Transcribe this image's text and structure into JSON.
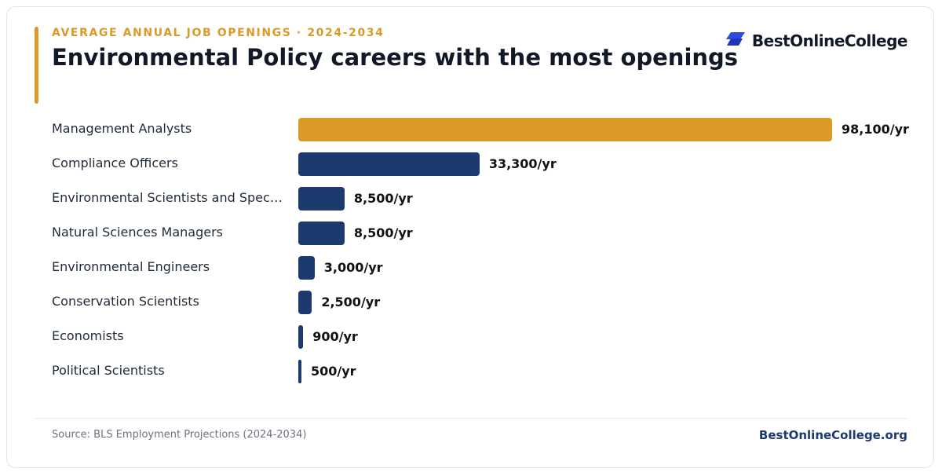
{
  "header": {
    "eyebrow": "AVERAGE ANNUAL JOB OPENINGS · 2024-2034",
    "title": "Environmental Policy careers with the most openings"
  },
  "brand": {
    "name": "BestOnlineCollege",
    "icon": "stacked-parallelogram-logo-icon"
  },
  "footer": {
    "source": "Source: BLS Employment Projections (2024-2034)",
    "site": "BestOnlineCollege.org"
  },
  "colors": {
    "accent": "#DB9A28",
    "primary_bar": "#1D3A6E",
    "highlight_bar": "#DB9A28",
    "site_link": "#1D3A6E",
    "brand_icon": "#2B4BE0"
  },
  "chart_data": {
    "type": "bar",
    "orientation": "horizontal",
    "title": "Environmental Policy careers with the most openings",
    "subtitle": "AVERAGE ANNUAL JOB OPENINGS · 2024-2034",
    "value_suffix": "/yr",
    "categories": [
      "Management Analysts",
      "Compliance Officers",
      "Environmental Scientists and Speciali...",
      "Natural Sciences Managers",
      "Environmental Engineers",
      "Conservation Scientists",
      "Economists",
      "Political Scientists"
    ],
    "values": [
      98100,
      33300,
      8500,
      8500,
      3000,
      2500,
      900,
      500
    ],
    "value_labels": [
      "98,100/yr",
      "33,300/yr",
      "8,500/yr",
      "8,500/yr",
      "3,000/yr",
      "2,500/yr",
      "900/yr",
      "500/yr"
    ],
    "highlighted_index": 0,
    "xlim": [
      0,
      98100
    ],
    "grid": false,
    "legend": "none"
  }
}
